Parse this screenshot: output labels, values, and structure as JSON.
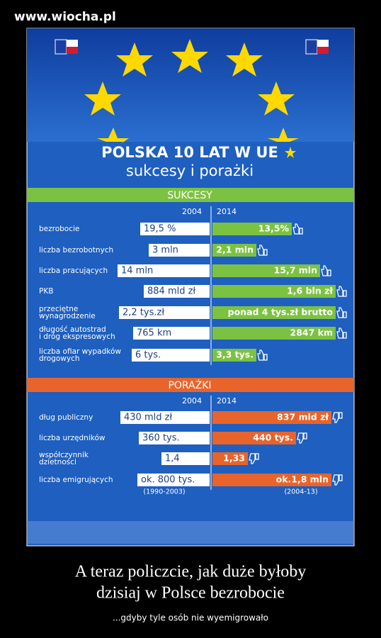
{
  "watermark": "www.wiocha.pl",
  "infographic": {
    "title": "POLSKA 10 LAT W UE",
    "subtitle": "sukcesy i porażki",
    "successes": {
      "heading": "SUKCESY",
      "col_2004": "2004",
      "col_2014": "2014",
      "rows": [
        {
          "label": [
            "bezrobocie"
          ],
          "v2004": "19,5 %",
          "v2014": "13,5%"
        },
        {
          "label": [
            "liczba bezrobotnych"
          ],
          "v2004": "3 mln",
          "v2014": "2,1 mln"
        },
        {
          "label": [
            "liczba pracujących"
          ],
          "v2004": "14 mln",
          "v2014": "15,7 mln"
        },
        {
          "label": [
            "PKB"
          ],
          "v2004": "884 mld zł",
          "v2014": "1,6 bln zł"
        },
        {
          "label": [
            "przeciętne",
            "wynagrodzenie"
          ],
          "v2004": "2,2 tys.zł",
          "v2014": "ponad  4 tys.zł brutto"
        },
        {
          "label": [
            "długość autostrad",
            "i dróg ekspresowych"
          ],
          "v2004": "765 km",
          "v2014": "2847 km"
        },
        {
          "label": [
            "liczba ofiar wypadków",
            "drogowych"
          ],
          "v2004": "6 tys.",
          "v2014": "3,3 tys."
        }
      ]
    },
    "failures": {
      "heading": "PORAŻKI",
      "col_2004": "2004",
      "col_2014": "2014",
      "rows": [
        {
          "label": [
            "dług publiczny"
          ],
          "v2004": "430 mld zł",
          "v2014": "837 mld zł"
        },
        {
          "label": [
            "liczba urzędników"
          ],
          "v2004": "360 tys.",
          "v2014": "440 tys."
        },
        {
          "label": [
            "współczynnik",
            "dzietności"
          ],
          "v2004": "1,4",
          "v2014": "1,33"
        },
        {
          "label": [
            "liczba emigrujących"
          ],
          "v2004": "ok. 800 tys.",
          "v2014": "ok.1,8 mln"
        }
      ],
      "note_2004": "(1990-2003)",
      "note_2014": "(2004-13)"
    }
  },
  "caption": {
    "line1": "A teraz policzcie, jak duże byłoby",
    "line2": "dzisiaj w Polsce bezrobocie",
    "subline": "...gdyby tyle osób nie wyemigrowało"
  }
}
